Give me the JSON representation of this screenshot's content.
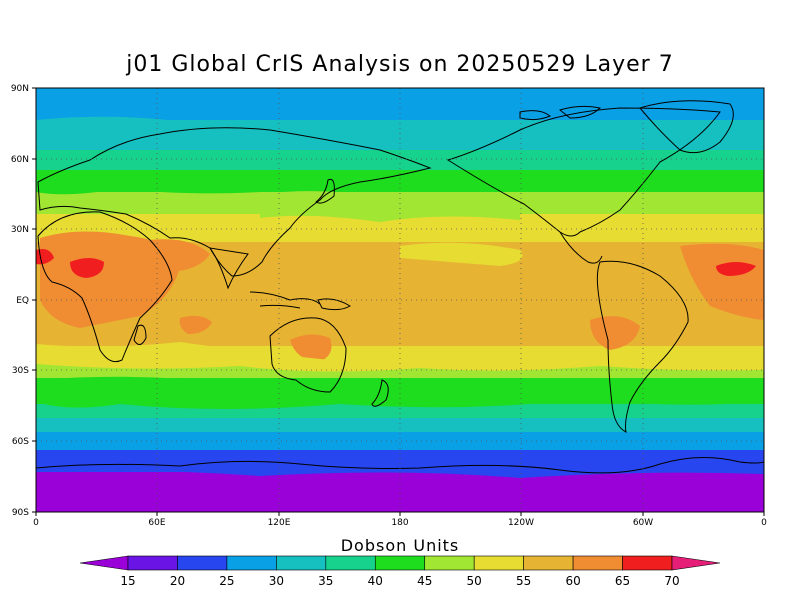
{
  "title": "j01 Global CrIS Analysis on 20250529 Layer 7",
  "axes": {
    "y_ticks": [
      "90N",
      "60N",
      "30N",
      "EQ",
      "30S",
      "60S",
      "90S"
    ],
    "x_ticks": [
      "0",
      "60E",
      "120E",
      "180",
      "120W",
      "60W",
      "0"
    ]
  },
  "colorbar": {
    "title": "Dobson Units",
    "labels": [
      "15",
      "20",
      "25",
      "30",
      "35",
      "40",
      "45",
      "50",
      "55",
      "60",
      "65",
      "70"
    ],
    "colors": [
      "#9a00d8",
      "#6a14e6",
      "#2846f0",
      "#0aa0e6",
      "#16c0c0",
      "#16d28c",
      "#1edc1e",
      "#a0e632",
      "#e6dc32",
      "#e6b432",
      "#f08c32",
      "#f01e1e",
      "#e61e78"
    ]
  },
  "map": {
    "variable": "ozone column (layer 7)",
    "units": "Dobson Units",
    "grid": "dotted graticule every 30 degrees"
  }
}
